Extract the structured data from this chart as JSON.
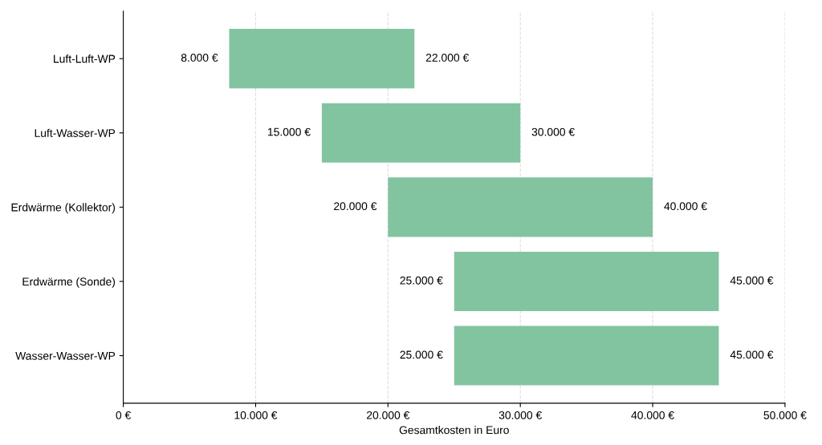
{
  "chart_data": {
    "type": "bar",
    "orientation": "horizontal",
    "xlabel": "Gesamtkosten in Euro",
    "categories": [
      "Luft-Luft-WP",
      "Luft-Wasser-WP",
      "Erdwärme (Kollektor)",
      "Erdwärme (Sonde)",
      "Wasser-Wasser-WP"
    ],
    "base": [
      8000,
      15000,
      20000,
      25000,
      25000
    ],
    "values": [
      14000,
      15000,
      20000,
      20000,
      20000
    ],
    "color": "#82c4a0",
    "xlim": [
      0,
      50000
    ],
    "xticks": [
      {
        "value": 0,
        "label": "0 €"
      },
      {
        "value": 10000,
        "label": "10.000 €"
      },
      {
        "value": 20000,
        "label": "20.000 €"
      },
      {
        "value": 30000,
        "label": "30.000 €"
      },
      {
        "value": 40000,
        "label": "40.000 €"
      },
      {
        "value": 50000,
        "label": "50.000 €"
      }
    ],
    "grid": "x",
    "annotations": [
      {
        "text": "8.000 €",
        "x": 8000,
        "y": "Luft-Luft-WP"
      },
      {
        "text": "22.000 €",
        "x": 22000,
        "y": "Luft-Luft-WP"
      },
      {
        "text": "15.000 €",
        "x": 15000,
        "y": "Luft-Wasser-WP"
      },
      {
        "text": "30.000 €",
        "x": 30000,
        "y": "Luft-Wasser-WP"
      },
      {
        "text": "20.000 €",
        "x": 20000,
        "y": "Erdwärme (Kollektor)"
      },
      {
        "text": "40.000 €",
        "x": 40000,
        "y": "Erdwärme (Kollektor)"
      },
      {
        "text": "25.000 €",
        "x": 25000,
        "y": "Erdwärme (Sonde)"
      },
      {
        "text": "45.000 €",
        "x": 45000,
        "y": "Erdwärme (Sonde)"
      },
      {
        "text": "25.000 €",
        "x": 25000,
        "y": "Wasser-Wasser-WP"
      },
      {
        "text": "45.000 €",
        "x": 45000,
        "y": "Wasser-Wasser-WP"
      }
    ]
  }
}
